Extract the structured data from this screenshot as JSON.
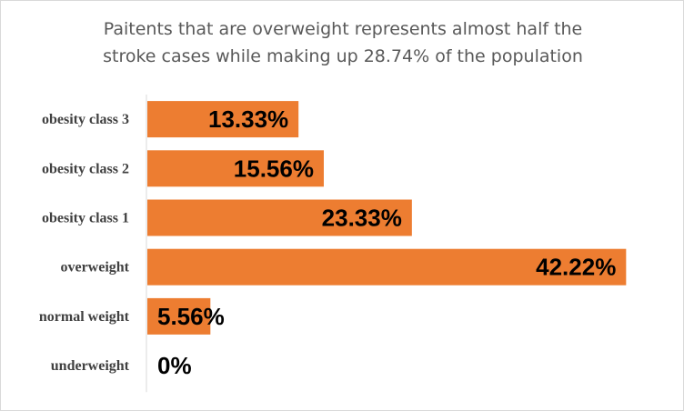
{
  "chart_data": {
    "type": "bar",
    "orientation": "horizontal",
    "title": "Paitents that are overweight represents almost half the stroke cases while making up 28.74% of the population",
    "title_lines": [
      "Paitents that are overweight represents almost half the",
      "stroke cases while making up 28.74% of the population"
    ],
    "categories": [
      "obesity class 3",
      "obesity class 2",
      "obesity class 1",
      "overweight",
      "normal weight",
      "underweight"
    ],
    "values": [
      13.33,
      15.56,
      23.33,
      42.22,
      5.56,
      0
    ],
    "data_labels": [
      "13.33%",
      "15.56%",
      "23.33%",
      "42.22%",
      "5.56%",
      "0%"
    ],
    "xlim": [
      0,
      45
    ],
    "xlabel": "",
    "ylabel": "",
    "grid": false,
    "legend": "none",
    "bar_color": "#ED7D31"
  }
}
